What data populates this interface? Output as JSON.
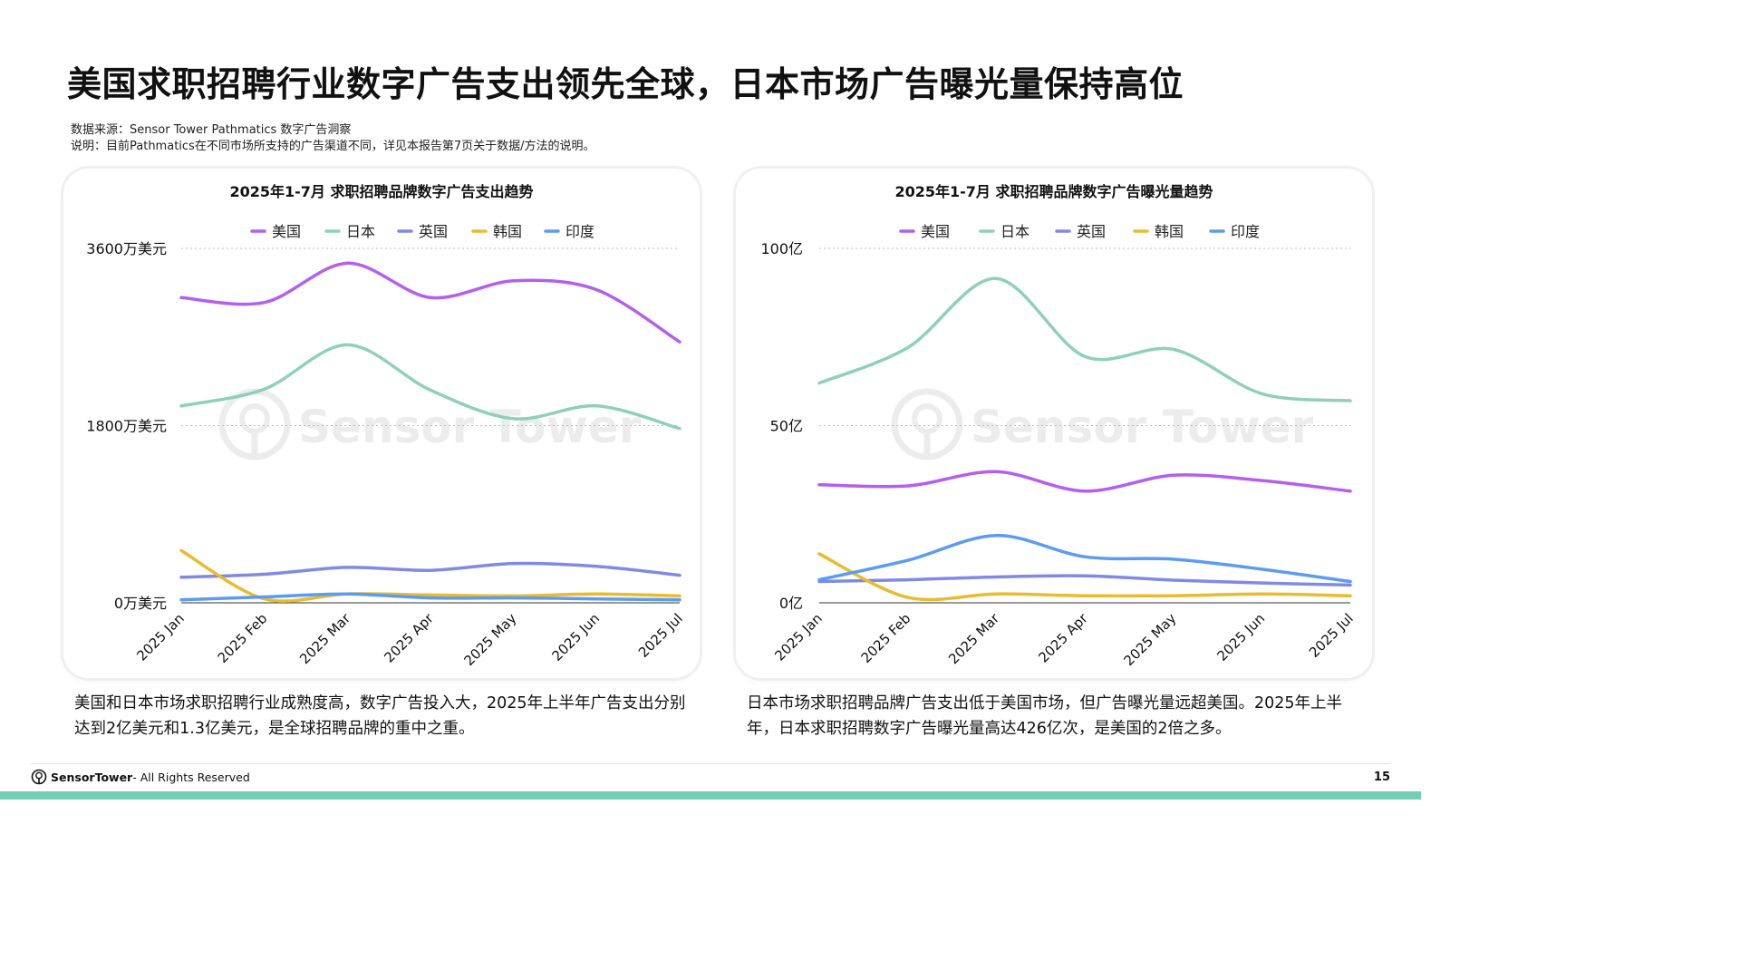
{
  "page": {
    "title": "美国求职招聘行业数字广告支出领先全球，日本市场广告曝光量保持高位",
    "source_line": "数据来源：Sensor Tower  Pathmatics 数字广告洞察",
    "note_line": "说明：目前Pathmatics在不同市场所支持的广告渠道不同，详见本报告第7页关于数据/方法的说明。",
    "caption_left": "美国和日本市场求职招聘行业成熟度高，数字广告投入大，2025年上半年广告支出分别达到2亿美元和1.3亿美元，是全球招聘品牌的重中之重。",
    "caption_right": "日本市场求职招聘品牌广告支出低于美国市场，但广告曝光量远超美国。2025年上半年，日本求职招聘数字广告曝光量高达426亿次，是美国的2倍之多。",
    "footer_brand": "SensorTower",
    "footer_rights": " - All Rights Reserved",
    "page_number": "15",
    "watermark": "Sensor Tower",
    "accent_color": "#72cfb6"
  },
  "chart_data": [
    {
      "type": "line",
      "title": "2025年1-7月 求职招聘品牌数字广告支出趋势",
      "x": [
        "2025 Jan",
        "2025 Feb",
        "2025 Mar",
        "2025 Apr",
        "2025 May",
        "2025 Jun",
        "2025 Jul"
      ],
      "ylim": [
        0,
        3600
      ],
      "yticks": [
        {
          "value": 0,
          "label": "0万美元"
        },
        {
          "value": 1800,
          "label": "1800万美元"
        },
        {
          "value": 3600,
          "label": "3600万美元"
        }
      ],
      "grid": true,
      "legend": "top",
      "series": [
        {
          "name": "美国",
          "color": "#b35ff0",
          "values": [
            3100,
            3050,
            3450,
            3100,
            3270,
            3180,
            2650
          ]
        },
        {
          "name": "日本",
          "color": "#8fd0b8",
          "values": [
            2000,
            2170,
            2620,
            2160,
            1870,
            2000,
            1770
          ]
        },
        {
          "name": "英国",
          "color": "#7f8ae6",
          "values": [
            260,
            290,
            360,
            330,
            400,
            370,
            280
          ]
        },
        {
          "name": "韩国",
          "color": "#e9bb2f",
          "values": [
            530,
            40,
            90,
            80,
            70,
            90,
            70
          ]
        },
        {
          "name": "印度",
          "color": "#5b9cf2",
          "values": [
            30,
            60,
            90,
            50,
            50,
            40,
            30
          ]
        }
      ]
    },
    {
      "type": "line",
      "title": "2025年1-7月 求职招聘品牌数字广告曝光量趋势",
      "x": [
        "2025 Jan",
        "2025 Feb",
        "2025 Mar",
        "2025 Apr",
        "2025 May",
        "2025 Jun",
        "2025 Jul"
      ],
      "ylim": [
        0,
        100
      ],
      "yticks": [
        {
          "value": 0,
          "label": "0亿"
        },
        {
          "value": 50,
          "label": "50亿"
        },
        {
          "value": 100,
          "label": "100亿"
        }
      ],
      "grid": true,
      "legend": "top",
      "series": [
        {
          "name": "美国",
          "color": "#b35ff0",
          "values": [
            33.3,
            33.0,
            37.0,
            31.5,
            36.0,
            34.5,
            31.5
          ]
        },
        {
          "name": "日本",
          "color": "#8fd0b8",
          "values": [
            62,
            72,
            91.5,
            69.5,
            71.5,
            59,
            57
          ]
        },
        {
          "name": "英国",
          "color": "#7f8ae6",
          "values": [
            6,
            6.5,
            7.3,
            7.6,
            6.4,
            5.6,
            5
          ]
        },
        {
          "name": "韩国",
          "color": "#e9bb2f",
          "values": [
            13.8,
            1.5,
            2.5,
            2,
            2,
            2.5,
            2
          ]
        },
        {
          "name": "印度",
          "color": "#5b9cf2",
          "values": [
            6.5,
            12,
            19,
            13,
            12.3,
            9.5,
            6
          ]
        }
      ]
    }
  ]
}
